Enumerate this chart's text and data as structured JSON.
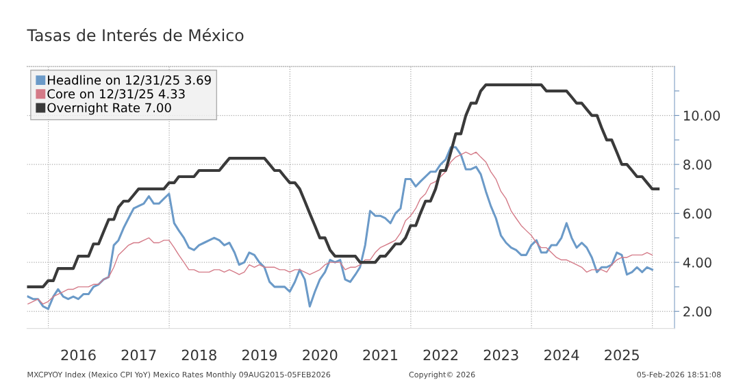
{
  "chart_data": {
    "type": "line",
    "title": "Tasas de Interés de México",
    "x": [
      "2015-08-31",
      "2015-09-30",
      "2015-10-31",
      "2015-11-30",
      "2015-12-31",
      "2016-01-31",
      "2016-02-29",
      "2016-03-31",
      "2016-04-30",
      "2016-05-31",
      "2016-06-30",
      "2016-07-31",
      "2016-08-31",
      "2016-09-30",
      "2016-10-31",
      "2016-11-30",
      "2016-12-31",
      "2017-01-31",
      "2017-02-28",
      "2017-03-31",
      "2017-04-30",
      "2017-05-31",
      "2017-06-30",
      "2017-07-31",
      "2017-08-31",
      "2017-09-30",
      "2017-10-31",
      "2017-11-30",
      "2017-12-31",
      "2018-01-31",
      "2018-02-28",
      "2018-03-31",
      "2018-04-30",
      "2018-05-31",
      "2018-06-30",
      "2018-07-31",
      "2018-08-31",
      "2018-09-30",
      "2018-10-31",
      "2018-11-30",
      "2018-12-31",
      "2019-01-31",
      "2019-02-28",
      "2019-03-31",
      "2019-04-30",
      "2019-05-31",
      "2019-06-30",
      "2019-07-31",
      "2019-08-31",
      "2019-09-30",
      "2019-10-31",
      "2019-11-30",
      "2019-12-31",
      "2020-01-31",
      "2020-02-29",
      "2020-03-31",
      "2020-04-30",
      "2020-05-31",
      "2020-06-30",
      "2020-07-31",
      "2020-08-31",
      "2020-09-30",
      "2020-10-31",
      "2020-11-30",
      "2020-12-31",
      "2021-01-31",
      "2021-02-28",
      "2021-03-31",
      "2021-04-30",
      "2021-05-31",
      "2021-06-30",
      "2021-07-31",
      "2021-08-31",
      "2021-09-30",
      "2021-10-31",
      "2021-11-30",
      "2021-12-31",
      "2022-01-31",
      "2022-02-28",
      "2022-03-31",
      "2022-04-30",
      "2022-05-31",
      "2022-06-30",
      "2022-07-31",
      "2022-08-31",
      "2022-09-30",
      "2022-10-31",
      "2022-11-30",
      "2022-12-31",
      "2023-01-31",
      "2023-02-28",
      "2023-03-31",
      "2023-04-30",
      "2023-05-31",
      "2023-06-30",
      "2023-07-31",
      "2023-08-31",
      "2023-09-30",
      "2023-10-31",
      "2023-11-30",
      "2023-12-31",
      "2024-01-31",
      "2024-02-29",
      "2024-03-31",
      "2024-04-30",
      "2024-05-31",
      "2024-06-30",
      "2024-07-31",
      "2024-08-31",
      "2024-09-30",
      "2024-10-31",
      "2024-11-30",
      "2024-12-31",
      "2025-01-31",
      "2025-02-28",
      "2025-03-31",
      "2025-04-30",
      "2025-05-31",
      "2025-06-30",
      "2025-07-31",
      "2025-08-31",
      "2025-09-30",
      "2025-10-31",
      "2025-11-30",
      "2025-12-31",
      "2026-01-31",
      "2026-02-05"
    ],
    "series": [
      {
        "name": "Headline on 12/31/25 3.69",
        "color": "#6b9ac8",
        "values": [
          2.6,
          2.5,
          2.5,
          2.2,
          2.1,
          2.6,
          2.9,
          2.6,
          2.5,
          2.6,
          2.5,
          2.7,
          2.7,
          3.0,
          3.1,
          3.3,
          3.4,
          4.7,
          4.9,
          5.4,
          5.8,
          6.2,
          6.3,
          6.4,
          6.7,
          6.4,
          6.4,
          6.6,
          6.8,
          5.6,
          5.3,
          5.0,
          4.6,
          4.5,
          4.7,
          4.8,
          4.9,
          5.0,
          4.9,
          4.7,
          4.8,
          4.4,
          3.9,
          4.0,
          4.4,
          4.3,
          4.0,
          3.8,
          3.2,
          3.0,
          3.0,
          3.0,
          2.8,
          3.2,
          3.7,
          3.3,
          2.2,
          2.8,
          3.3,
          3.6,
          4.1,
          4.0,
          4.1,
          3.3,
          3.2,
          3.5,
          3.8,
          4.7,
          6.1,
          5.9,
          5.9,
          5.8,
          5.6,
          6.0,
          6.2,
          7.4,
          7.4,
          7.1,
          7.3,
          7.5,
          7.7,
          7.7,
          8.0,
          8.2,
          8.7,
          8.7,
          8.4,
          7.8,
          7.8,
          7.9,
          7.6,
          6.9,
          6.3,
          5.8,
          5.1,
          4.8,
          4.6,
          4.5,
          4.3,
          4.3,
          4.7,
          4.9,
          4.4,
          4.4,
          4.7,
          4.7,
          5.0,
          5.6,
          5.0,
          4.6,
          4.8,
          4.6,
          4.2,
          3.6,
          3.8,
          3.8,
          3.9,
          4.4,
          4.3,
          3.5,
          3.6,
          3.8,
          3.6,
          3.8,
          3.7,
          null,
          null
        ]
      },
      {
        "name": "Core on 12/31/25 4.33",
        "color": "#d47a87",
        "values": [
          2.3,
          2.4,
          2.5,
          2.3,
          2.4,
          2.6,
          2.7,
          2.8,
          2.9,
          2.9,
          3.0,
          3.0,
          3.0,
          3.1,
          3.1,
          3.3,
          3.4,
          3.8,
          4.3,
          4.5,
          4.7,
          4.8,
          4.8,
          4.9,
          5.0,
          4.8,
          4.8,
          4.9,
          4.9,
          4.6,
          4.3,
          4.0,
          3.7,
          3.7,
          3.6,
          3.6,
          3.6,
          3.7,
          3.7,
          3.6,
          3.7,
          3.6,
          3.5,
          3.6,
          3.9,
          3.8,
          3.9,
          3.8,
          3.8,
          3.8,
          3.7,
          3.7,
          3.6,
          3.7,
          3.7,
          3.6,
          3.5,
          3.6,
          3.7,
          3.9,
          4.0,
          4.0,
          4.0,
          3.7,
          3.8,
          3.8,
          3.9,
          4.1,
          4.1,
          4.4,
          4.6,
          4.7,
          4.8,
          4.9,
          5.2,
          5.7,
          5.9,
          6.2,
          6.6,
          6.8,
          7.2,
          7.3,
          7.5,
          7.7,
          8.1,
          8.3,
          8.4,
          8.5,
          8.4,
          8.5,
          8.3,
          8.1,
          7.7,
          7.4,
          6.9,
          6.6,
          6.1,
          5.8,
          5.5,
          5.3,
          5.1,
          4.8,
          4.6,
          4.6,
          4.4,
          4.2,
          4.1,
          4.1,
          4.0,
          3.9,
          3.8,
          3.6,
          3.7,
          3.7,
          3.7,
          3.6,
          3.9,
          4.1,
          4.2,
          4.2,
          4.3,
          4.3,
          4.3,
          4.4,
          4.3,
          null,
          null
        ]
      },
      {
        "name": "Overnight Rate 7.00",
        "color": "#3a3a3a",
        "values": [
          3.0,
          3.0,
          3.0,
          3.0,
          3.25,
          3.25,
          3.75,
          3.75,
          3.75,
          3.75,
          4.25,
          4.25,
          4.25,
          4.75,
          4.75,
          5.25,
          5.75,
          5.75,
          6.25,
          6.5,
          6.5,
          6.75,
          7.0,
          7.0,
          7.0,
          7.0,
          7.0,
          7.0,
          7.25,
          7.25,
          7.5,
          7.5,
          7.5,
          7.5,
          7.75,
          7.75,
          7.75,
          7.75,
          7.75,
          8.0,
          8.25,
          8.25,
          8.25,
          8.25,
          8.25,
          8.25,
          8.25,
          8.25,
          8.0,
          7.75,
          7.75,
          7.5,
          7.25,
          7.25,
          7.0,
          6.5,
          6.0,
          5.5,
          5.0,
          5.0,
          4.5,
          4.25,
          4.25,
          4.25,
          4.25,
          4.25,
          4.0,
          4.0,
          4.0,
          4.0,
          4.25,
          4.25,
          4.5,
          4.75,
          4.75,
          5.0,
          5.5,
          5.5,
          6.0,
          6.5,
          6.5,
          7.0,
          7.75,
          7.75,
          8.5,
          9.25,
          9.25,
          10.0,
          10.5,
          10.5,
          11.0,
          11.25,
          11.25,
          11.25,
          11.25,
          11.25,
          11.25,
          11.25,
          11.25,
          11.25,
          11.25,
          11.25,
          11.25,
          11.0,
          11.0,
          11.0,
          11.0,
          11.0,
          10.75,
          10.5,
          10.5,
          10.25,
          10.0,
          10.0,
          9.5,
          9.0,
          9.0,
          8.5,
          8.0,
          8.0,
          7.75,
          7.5,
          7.5,
          7.25,
          7.0,
          7.0,
          7.0
        ]
      }
    ],
    "xlim": [
      "2015-08-25",
      "2026-05-15"
    ],
    "xticks": [
      {
        "value": "2016-01-01",
        "label": null
      },
      {
        "value": "2016-07-01",
        "label": "2016"
      },
      {
        "value": "2017-07-01",
        "label": "2017"
      },
      {
        "value": "2018-01-01",
        "label": null
      },
      {
        "value": "2018-07-01",
        "label": "2018"
      },
      {
        "value": "2019-07-01",
        "label": "2019"
      },
      {
        "value": "2020-01-01",
        "label": null
      },
      {
        "value": "2020-07-01",
        "label": "2020"
      },
      {
        "value": "2021-07-01",
        "label": "2021"
      },
      {
        "value": "2022-01-01",
        "label": null
      },
      {
        "value": "2022-07-01",
        "label": "2022"
      },
      {
        "value": "2023-07-01",
        "label": "2023"
      },
      {
        "value": "2024-01-01",
        "label": null
      },
      {
        "value": "2024-07-01",
        "label": "2024"
      },
      {
        "value": "2025-07-01",
        "label": "2025"
      },
      {
        "value": "2026-01-01",
        "label": null
      }
    ],
    "ylim": [
      1.3,
      12.0
    ],
    "yticks": [
      {
        "value": 2,
        "label": "2.00"
      },
      {
        "value": 3,
        "label": null
      },
      {
        "value": 4,
        "label": "4.00"
      },
      {
        "value": 5,
        "label": null
      },
      {
        "value": 6,
        "label": "6.00"
      },
      {
        "value": 7,
        "label": null
      },
      {
        "value": 8,
        "label": "8.00"
      },
      {
        "value": 9,
        "label": null
      },
      {
        "value": 10,
        "label": "10.00"
      },
      {
        "value": 11,
        "label": null
      }
    ],
    "grid": true,
    "legend": "top left",
    "annotations": [
      "MXCPYOY Index (Mexico CPI YoY) Mexico Rates Monthly 09AUG2015-05FEB2026",
      "Copyright© 2026",
      "05-Feb-2026 18:51:08"
    ]
  }
}
